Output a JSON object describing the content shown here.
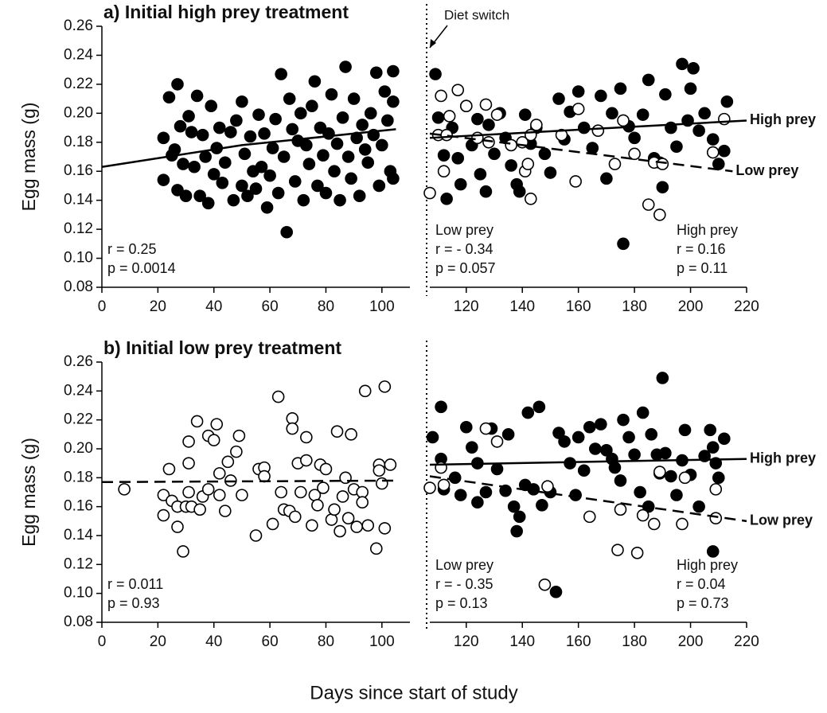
{
  "chart_data": [
    {
      "type": "scatter",
      "title": "a) Initial high prey treatment",
      "ylabel": "Egg mass (g)",
      "xlim": [
        0,
        110
      ],
      "xticks": [
        0,
        20,
        40,
        60,
        80,
        100
      ],
      "ylim": [
        0.08,
        0.26
      ],
      "yticks": [
        0.08,
        {
          "value": 0.1,
          "label": "0.10"
        },
        0.12,
        0.14,
        0.16,
        0.18,
        {
          "value": 0.2,
          "label": "0.20"
        },
        0.22,
        0.24,
        0.26
      ],
      "series": [
        {
          "marker": "filled",
          "color": "#000000",
          "x": [
            22,
            22,
            24,
            25,
            26,
            27,
            27,
            28,
            29,
            30,
            31,
            32,
            33,
            34,
            35,
            36,
            37,
            38,
            39,
            40,
            41,
            42,
            43,
            44,
            46,
            47,
            48,
            50,
            50,
            51,
            52,
            53,
            54,
            55,
            56,
            57,
            58,
            59,
            60,
            61,
            62,
            63,
            64,
            65,
            66,
            67,
            68,
            69,
            70,
            71,
            72,
            73,
            74,
            75,
            76,
            77,
            78,
            79,
            80,
            81,
            82,
            83,
            84,
            85,
            86,
            87,
            88,
            89,
            90,
            91,
            92,
            93,
            94,
            95,
            96,
            97,
            98,
            99,
            100,
            101,
            102,
            103,
            104,
            104,
            104
          ],
          "y": [
            0.183,
            0.154,
            0.211,
            0.171,
            0.175,
            0.147,
            0.22,
            0.191,
            0.165,
            0.143,
            0.198,
            0.187,
            0.163,
            0.212,
            0.143,
            0.185,
            0.17,
            0.138,
            0.205,
            0.158,
            0.176,
            0.19,
            0.152,
            0.166,
            0.187,
            0.14,
            0.195,
            0.208,
            0.15,
            0.172,
            0.143,
            0.184,
            0.16,
            0.148,
            0.199,
            0.163,
            0.186,
            0.135,
            0.157,
            0.176,
            0.196,
            0.145,
            0.227,
            0.17,
            0.118,
            0.21,
            0.189,
            0.153,
            0.181,
            0.2,
            0.14,
            0.178,
            0.165,
            0.205,
            0.222,
            0.15,
            0.19,
            0.171,
            0.145,
            0.186,
            0.213,
            0.16,
            0.179,
            0.14,
            0.197,
            0.232,
            0.17,
            0.155,
            0.21,
            0.183,
            0.143,
            0.192,
            0.175,
            0.166,
            0.2,
            0.185,
            0.228,
            0.15,
            0.178,
            0.215,
            0.195,
            0.16,
            0.229,
            0.155,
            0.208
          ]
        }
      ],
      "fits": [
        {
          "style": "solid",
          "x": [
            0,
            50,
            105
          ],
          "y": [
            0.163,
            0.178,
            0.189
          ]
        }
      ],
      "stats": [
        {
          "align": "left",
          "lines": [
            "r = 0.25",
            "p = 0.0014"
          ]
        }
      ]
    },
    {
      "type": "scatter",
      "annotation": "Diet switch",
      "xlim": [
        107,
        220
      ],
      "xticks": [
        120,
        140,
        160,
        180,
        200,
        220
      ],
      "ylim": [
        0.08,
        0.26
      ],
      "series": [
        {
          "marker": "filled",
          "color": "#000000",
          "x": [
            109,
            110,
            112,
            113,
            115,
            117,
            118,
            120,
            122,
            124,
            125,
            127,
            128,
            130,
            132,
            134,
            136,
            138,
            139,
            141,
            143,
            145,
            148,
            150,
            153,
            155,
            157,
            160,
            162,
            165,
            168,
            170,
            172,
            175,
            176,
            178,
            180,
            183,
            185,
            187,
            189,
            190,
            191,
            193,
            195,
            197,
            199,
            200,
            201,
            203,
            205,
            208,
            210,
            212,
            213
          ],
          "y": [
            0.227,
            0.197,
            0.171,
            0.141,
            0.19,
            0.169,
            0.151,
            0.205,
            0.178,
            0.196,
            0.158,
            0.146,
            0.192,
            0.172,
            0.2,
            0.183,
            0.164,
            0.151,
            0.146,
            0.199,
            0.179,
            0.19,
            0.172,
            0.159,
            0.21,
            0.182,
            0.201,
            0.215,
            0.19,
            0.176,
            0.212,
            0.155,
            0.2,
            0.217,
            0.11,
            0.191,
            0.183,
            0.199,
            0.223,
            0.169,
            0.166,
            0.149,
            0.213,
            0.19,
            0.177,
            0.234,
            0.195,
            0.217,
            0.231,
            0.188,
            0.2,
            0.182,
            0.165,
            0.174,
            0.208
          ]
        },
        {
          "marker": "open",
          "color": "#000000",
          "x": [
            107,
            110,
            111,
            112,
            113,
            114,
            117,
            120,
            124,
            127,
            128,
            131,
            136,
            140,
            141,
            142,
            143,
            143,
            145,
            154,
            159,
            160,
            167,
            173,
            176,
            180,
            185,
            187,
            189,
            190,
            208,
            212
          ],
          "y": [
            0.145,
            0.185,
            0.212,
            0.16,
            0.185,
            0.198,
            0.216,
            0.205,
            0.183,
            0.206,
            0.18,
            0.199,
            0.178,
            0.18,
            0.16,
            0.165,
            0.185,
            0.141,
            0.192,
            0.185,
            0.153,
            0.203,
            0.188,
            0.165,
            0.195,
            0.172,
            0.137,
            0.166,
            0.13,
            0.165,
            0.173,
            0.196
          ]
        }
      ],
      "fits": [
        {
          "label": "High prey",
          "style": "solid",
          "x": [
            107,
            220
          ],
          "y": [
            0.183,
            0.195
          ]
        },
        {
          "label": "Low prey",
          "style": "dashed",
          "x": [
            107,
            215
          ],
          "y": [
            0.186,
            0.16
          ]
        }
      ],
      "stats": [
        {
          "align": "left",
          "lines": [
            "Low prey",
            "r = - 0.34",
            "p = 0.057"
          ]
        },
        {
          "align": "right",
          "lines": [
            "High prey",
            "r = 0.16",
            "p = 0.11"
          ]
        }
      ]
    },
    {
      "type": "scatter",
      "title": "b) Initial low prey treatment",
      "ylabel": "Egg mass (g)",
      "xlim": [
        0,
        110
      ],
      "xticks": [
        0,
        20,
        40,
        60,
        80,
        100
      ],
      "ylim": [
        0.08,
        0.26
      ],
      "yticks": [
        0.08,
        {
          "value": 0.1,
          "label": "0.10"
        },
        0.12,
        0.14,
        0.16,
        0.18,
        {
          "value": 0.2,
          "label": "0.20"
        },
        0.22,
        0.24,
        0.26
      ],
      "series": [
        {
          "marker": "open",
          "color": "#000000",
          "x": [
            8,
            22,
            22,
            24,
            25,
            27,
            27,
            29,
            30,
            31,
            31,
            31,
            32,
            34,
            35,
            36,
            38,
            38,
            40,
            41,
            42,
            42,
            44,
            45,
            46,
            48,
            49,
            50,
            55,
            56,
            58,
            58,
            61,
            63,
            64,
            65,
            67,
            68,
            68,
            69,
            70,
            71,
            73,
            73,
            75,
            76,
            77,
            78,
            79,
            80,
            82,
            83,
            84,
            85,
            86,
            87,
            88,
            89,
            90,
            91,
            93,
            93,
            94,
            95,
            98,
            99,
            99,
            100,
            101,
            101,
            103
          ],
          "y": [
            0.172,
            0.168,
            0.154,
            0.186,
            0.164,
            0.16,
            0.146,
            0.129,
            0.16,
            0.205,
            0.19,
            0.17,
            0.16,
            0.219,
            0.158,
            0.167,
            0.209,
            0.172,
            0.206,
            0.217,
            0.168,
            0.183,
            0.157,
            0.191,
            0.178,
            0.198,
            0.209,
            0.168,
            0.14,
            0.186,
            0.187,
            0.181,
            0.148,
            0.236,
            0.17,
            0.158,
            0.157,
            0.221,
            0.214,
            0.153,
            0.19,
            0.17,
            0.208,
            0.192,
            0.147,
            0.168,
            0.161,
            0.189,
            0.173,
            0.186,
            0.151,
            0.158,
            0.212,
            0.143,
            0.167,
            0.18,
            0.152,
            0.21,
            0.172,
            0.146,
            0.17,
            0.163,
            0.24,
            0.147,
            0.131,
            0.189,
            0.185,
            0.176,
            0.243,
            0.145,
            0.189
          ]
        }
      ],
      "fits": [
        {
          "style": "dashed",
          "x": [
            0,
            105
          ],
          "y": [
            0.177,
            0.178
          ]
        }
      ],
      "stats": [
        {
          "align": "left",
          "lines": [
            "r = 0.011",
            "p = 0.93"
          ]
        }
      ]
    },
    {
      "type": "scatter",
      "xlim": [
        107,
        220
      ],
      "xticks": [
        120,
        140,
        160,
        180,
        200,
        220
      ],
      "ylim": [
        0.08,
        0.26
      ],
      "series": [
        {
          "marker": "filled",
          "color": "#000000",
          "x": [
            108,
            111,
            111,
            112,
            116,
            118,
            120,
            122,
            124,
            124,
            127,
            129,
            131,
            134,
            135,
            137,
            138,
            139,
            141,
            142,
            144,
            146,
            147,
            150,
            152,
            153,
            155,
            157,
            159,
            160,
            162,
            164,
            166,
            168,
            170,
            172,
            173,
            175,
            176,
            178,
            180,
            182,
            183,
            185,
            186,
            188,
            189,
            190,
            191,
            193,
            195,
            197,
            198,
            200,
            203,
            205,
            207,
            208,
            208,
            209,
            210,
            212
          ],
          "y": [
            0.208,
            0.229,
            0.193,
            0.172,
            0.18,
            0.168,
            0.215,
            0.201,
            0.19,
            0.163,
            0.17,
            0.214,
            0.186,
            0.171,
            0.21,
            0.16,
            0.143,
            0.153,
            0.175,
            0.225,
            0.172,
            0.229,
            0.161,
            0.17,
            0.101,
            0.211,
            0.205,
            0.19,
            0.168,
            0.208,
            0.185,
            0.215,
            0.2,
            0.217,
            0.199,
            0.193,
            0.187,
            0.178,
            0.22,
            0.208,
            0.196,
            0.17,
            0.225,
            0.16,
            0.21,
            0.196,
            0.183,
            0.249,
            0.197,
            0.181,
            0.168,
            0.192,
            0.213,
            0.182,
            0.16,
            0.195,
            0.213,
            0.201,
            0.129,
            0.19,
            0.18,
            0.207
          ]
        },
        {
          "marker": "open",
          "color": "#000000",
          "x": [
            107,
            111,
            112,
            127,
            131,
            148,
            149,
            164,
            174,
            175,
            181,
            183,
            187,
            189,
            197,
            198,
            209,
            209
          ],
          "y": [
            0.173,
            0.187,
            0.175,
            0.214,
            0.205,
            0.106,
            0.174,
            0.153,
            0.13,
            0.158,
            0.128,
            0.154,
            0.148,
            0.184,
            0.148,
            0.18,
            0.172,
            0.152
          ]
        }
      ],
      "fits": [
        {
          "label": "High prey",
          "style": "solid",
          "x": [
            107,
            220
          ],
          "y": [
            0.189,
            0.193
          ]
        },
        {
          "label": "Low prey",
          "style": "dashed",
          "x": [
            107,
            220
          ],
          "y": [
            0.181,
            0.15
          ]
        }
      ],
      "stats": [
        {
          "align": "left",
          "lines": [
            "Low prey",
            "r = - 0.35",
            "p = 0.13"
          ]
        },
        {
          "align": "right",
          "lines": [
            "High prey",
            "r = 0.04",
            "p = 0.73"
          ]
        }
      ]
    }
  ],
  "xlabel": "Days since start of study"
}
